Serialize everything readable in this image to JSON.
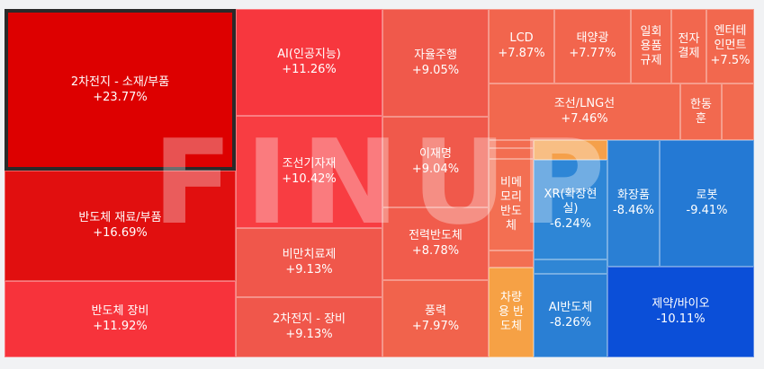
{
  "watermark": "FINUP",
  "chart_data": {
    "type": "treemap",
    "unit": "%",
    "tiles": [
      {
        "name": "2차전지 - 소재/부품",
        "label": "+23.77%",
        "value": 23.77,
        "color": "#dd0000",
        "selected": true
      },
      {
        "name": "반도체 재료/부품",
        "label": "+16.69%",
        "value": 16.69,
        "color": "#e10f0f"
      },
      {
        "name": "반도체 장비",
        "label": "+11.92%",
        "value": 11.92,
        "color": "#f7333b"
      },
      {
        "name": "AI(인공지능)",
        "label": "+11.26%",
        "value": 11.26,
        "color": "#f7373e"
      },
      {
        "name": "조선기자재",
        "label": "+10.42%",
        "value": 10.42,
        "color": "#f83d42"
      },
      {
        "name": "비만치료제",
        "label": "+9.13%",
        "value": 9.13,
        "color": "#f0574b"
      },
      {
        "name": "2차전지 - 장비",
        "label": "+9.13%",
        "value": 9.13,
        "color": "#f0574b"
      },
      {
        "name": "자율주행",
        "label": "+9.05%",
        "value": 9.05,
        "color": "#f0594b"
      },
      {
        "name": "이재명",
        "label": "+9.04%",
        "value": 9.04,
        "color": "#f0594b"
      },
      {
        "name": "전력반도체",
        "label": "+8.78%",
        "value": 8.78,
        "color": "#f15c4c"
      },
      {
        "name": "풍력",
        "label": "+7.97%",
        "value": 7.97,
        "color": "#f1634c"
      },
      {
        "name": "LCD",
        "label": "+7.87%",
        "value": 7.87,
        "color": "#f2654d"
      },
      {
        "name": "태양광",
        "label": "+7.77%",
        "value": 7.77,
        "color": "#f2654d"
      },
      {
        "name": "일회\n용품\n규제",
        "label": "",
        "value": null,
        "color": "#f2674e"
      },
      {
        "name": "전자\n결제",
        "label": "",
        "value": null,
        "color": "#f2674e"
      },
      {
        "name": "엔터테\n인먼트",
        "label": "+7.5%",
        "value": 7.5,
        "color": "#f2684e"
      },
      {
        "name": "조선/LNG선",
        "label": "+7.46%",
        "value": 7.46,
        "color": "#f2684e"
      },
      {
        "name": "한동\n훈",
        "label": "",
        "value": null,
        "color": "#f2694f"
      },
      {
        "name": "",
        "label": "",
        "value": null,
        "color": "#f26a4f"
      },
      {
        "name": "",
        "label": "",
        "value": null,
        "color": "#f36d51"
      },
      {
        "name": "",
        "label": "",
        "value": null,
        "color": "#f36d51"
      },
      {
        "name": "비메\n모리\n반도\n체",
        "label": "",
        "value": null,
        "color": "#f36f52"
      },
      {
        "name": "",
        "label": "",
        "value": null,
        "color": "#f36f52"
      },
      {
        "name": "차량\n용 반\n도체",
        "label": "",
        "value": null,
        "color": "#f6a145"
      },
      {
        "name": "",
        "label": "",
        "value": null,
        "color": "#f5a04a"
      },
      {
        "name": "XR(확장현\n실)",
        "label": "-6.24%",
        "value": -6.24,
        "color": "#2e86d6"
      },
      {
        "name": "",
        "label": "",
        "value": null,
        "color": "#2f86d5"
      },
      {
        "name": "AI반도체",
        "label": "-8.26%",
        "value": -8.26,
        "color": "#2a7fd4"
      },
      {
        "name": "화장품",
        "label": "-8.46%",
        "value": -8.46,
        "color": "#2a7fd4"
      },
      {
        "name": "로봇",
        "label": "-9.41%",
        "value": -9.41,
        "color": "#2479d4"
      },
      {
        "name": "제약/바이오",
        "label": "-10.11%",
        "value": -10.11,
        "color": "#0b4fd8"
      }
    ]
  }
}
